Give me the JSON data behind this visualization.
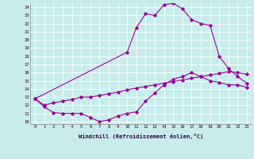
{
  "xlabel": "Windchill (Refroidissement éolien,°C)",
  "bg_color": "#c8ecec",
  "line_color": "#990099",
  "grid_color": "#ffffff",
  "xlim": [
    -0.5,
    23.5
  ],
  "ylim": [
    9.7,
    24.5
  ],
  "xticks": [
    0,
    1,
    2,
    3,
    4,
    5,
    6,
    7,
    8,
    9,
    10,
    11,
    12,
    13,
    14,
    15,
    16,
    17,
    18,
    19,
    20,
    21,
    22,
    23
  ],
  "yticks": [
    10,
    11,
    12,
    13,
    14,
    15,
    16,
    17,
    18,
    19,
    20,
    21,
    22,
    23,
    24
  ],
  "series1_x": [
    0,
    1,
    2,
    3,
    4,
    5,
    6,
    7,
    8,
    9,
    10,
    11,
    12,
    13,
    14,
    15,
    16,
    17,
    18,
    19,
    20,
    21,
    22,
    23
  ],
  "series1_y": [
    12.8,
    11.8,
    11.1,
    11.0,
    11.0,
    11.0,
    10.5,
    10.0,
    10.2,
    10.7,
    11.0,
    11.2,
    12.5,
    13.5,
    14.5,
    15.2,
    15.5,
    16.0,
    15.5,
    15.0,
    14.8,
    14.5,
    14.5,
    14.2
  ],
  "series2_x": [
    0,
    1,
    2,
    3,
    4,
    5,
    6,
    7,
    8,
    9,
    10,
    11,
    12,
    13,
    14,
    15,
    16,
    17,
    18,
    19,
    20,
    21,
    22,
    23
  ],
  "series2_y": [
    12.8,
    12.0,
    12.3,
    12.5,
    12.7,
    13.0,
    13.0,
    13.2,
    13.4,
    13.6,
    13.9,
    14.1,
    14.3,
    14.5,
    14.7,
    14.9,
    15.1,
    15.3,
    15.5,
    15.7,
    15.9,
    16.1,
    16.0,
    15.8
  ],
  "series3_x": [
    0,
    10,
    11,
    12,
    13,
    14,
    15,
    16,
    17,
    18,
    19,
    20,
    21,
    22,
    23
  ],
  "series3_y": [
    12.8,
    18.5,
    21.5,
    23.2,
    23.0,
    24.3,
    24.5,
    23.8,
    22.5,
    22.0,
    21.8,
    18.0,
    16.5,
    15.5,
    14.7
  ]
}
